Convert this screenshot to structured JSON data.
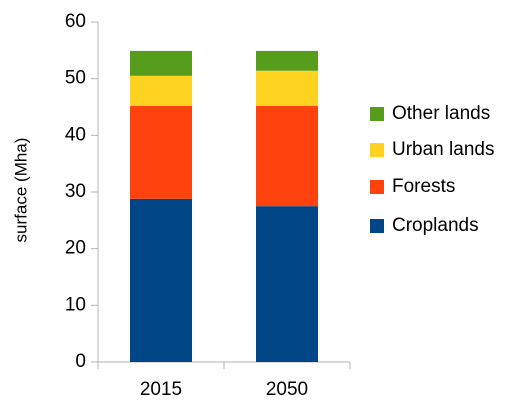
{
  "chart_data": {
    "type": "stacked_bar",
    "y_label": "surface (Mha)",
    "categories": [
      "2015",
      "2050"
    ],
    "series": [
      {
        "name": "Croplands",
        "color": "#004586",
        "values": [
          28.8,
          27.5
        ]
      },
      {
        "name": "Forests",
        "color": "#ff420e",
        "values": [
          16.4,
          17.7
        ]
      },
      {
        "name": "Urban lands",
        "color": "#ffd320",
        "values": [
          5.3,
          6.2
        ]
      },
      {
        "name": "Other lands",
        "color": "#579d1c",
        "values": [
          4.4,
          3.5
        ]
      }
    ],
    "ylim": [
      0,
      60
    ],
    "yticks": [
      0,
      10,
      20,
      30,
      40,
      50,
      60
    ],
    "grid": false,
    "legend": "right"
  }
}
